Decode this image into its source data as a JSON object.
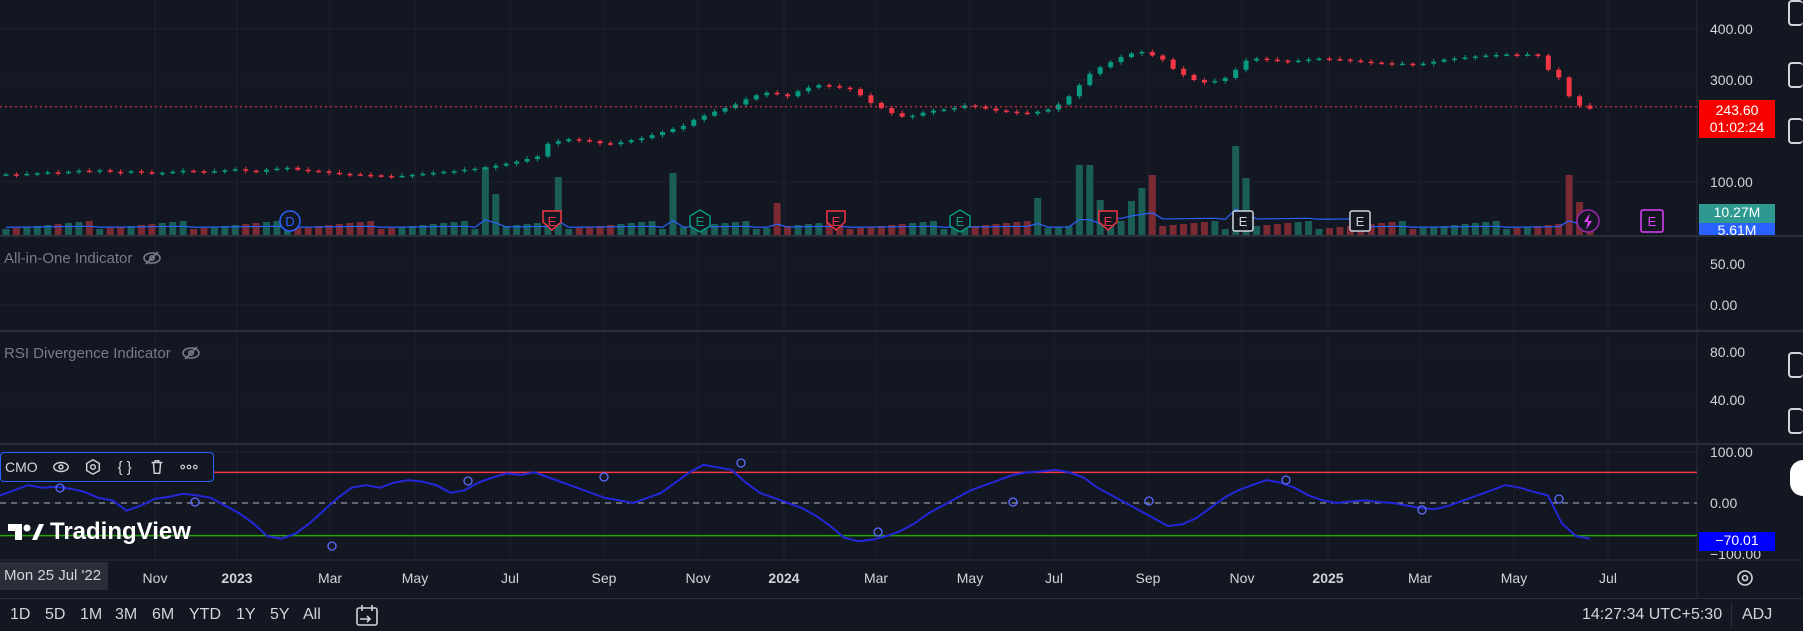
{
  "chart_data": {
    "type": "candlestick",
    "price_axis": {
      "min": 100,
      "max": 400,
      "ticks": [
        "400.00",
        "300.00",
        "100.00"
      ]
    },
    "aio_axis_ticks": [
      "50.00",
      "0.00"
    ],
    "rsi_axis_ticks": [
      "80.00",
      "40.00"
    ],
    "cmo_axis_ticks": [
      "100.00",
      "0.00",
      "−100.00"
    ],
    "time_axis": [
      "Nov",
      "2023",
      "Mar",
      "May",
      "Jul",
      "Sep",
      "Nov",
      "2024",
      "Mar",
      "May",
      "Jul",
      "Sep",
      "Nov",
      "2025",
      "Mar",
      "May",
      "Jul"
    ],
    "time_axis_bold": [
      "2023",
      "2024",
      "2025"
    ],
    "close_series": [
      115,
      114,
      116,
      117,
      119,
      118,
      120,
      122,
      121,
      123,
      120,
      118,
      121,
      119,
      117,
      118,
      120,
      122,
      121,
      120,
      121,
      123,
      125,
      122,
      120,
      124,
      126,
      128,
      124,
      122,
      121,
      118,
      116,
      115,
      114,
      113,
      112,
      111,
      112,
      114,
      116,
      118,
      120,
      121,
      124,
      126,
      128,
      132,
      136,
      140,
      145,
      150,
      175,
      180,
      184,
      182,
      180,
      176,
      174,
      178,
      182,
      186,
      192,
      198,
      204,
      210,
      222,
      230,
      238,
      245,
      252,
      262,
      270,
      275,
      272,
      268,
      278,
      285,
      290,
      288,
      285,
      282,
      270,
      255,
      245,
      235,
      228,
      230,
      236,
      240,
      242,
      245,
      250,
      248,
      244,
      240,
      238,
      236,
      234,
      238,
      242,
      252,
      268,
      290,
      312,
      325,
      335,
      345,
      352,
      355,
      348,
      340,
      322,
      310,
      300,
      295,
      298,
      304,
      320,
      338,
      342,
      340,
      338,
      336,
      338,
      340,
      342,
      341,
      340,
      338,
      336,
      334,
      333,
      332,
      332,
      330,
      332,
      336,
      340,
      342,
      344,
      346,
      348,
      349,
      350,
      349,
      350,
      348,
      320,
      305,
      268,
      250,
      243.6
    ],
    "candle_colors": {
      "up": "#089981",
      "down": "#f23645"
    },
    "last_price": "243.60",
    "countdown": "01:02:24",
    "volume_label": "10.27M",
    "volume_ma_label": "5.61M",
    "cmo_value": "−70.01",
    "cmo_series": [
      15,
      25,
      35,
      30,
      32,
      28,
      22,
      10,
      5,
      -15,
      -5,
      8,
      12,
      18,
      15,
      10,
      -5,
      -20,
      -40,
      -65,
      -70,
      -60,
      -40,
      -15,
      10,
      30,
      35,
      30,
      40,
      45,
      42,
      35,
      20,
      25,
      40,
      50,
      58,
      55,
      60,
      50,
      40,
      30,
      20,
      10,
      5,
      0,
      10,
      20,
      40,
      60,
      75,
      70,
      65,
      40,
      20,
      10,
      0,
      -10,
      -25,
      -45,
      -68,
      -75,
      -72,
      -65,
      -55,
      -40,
      -20,
      -5,
      10,
      25,
      35,
      45,
      55,
      60,
      62,
      65,
      60,
      50,
      30,
      15,
      0,
      -15,
      -30,
      -45,
      -42,
      -30,
      -10,
      10,
      25,
      35,
      45,
      40,
      30,
      15,
      5,
      0,
      3,
      5,
      2,
      0,
      -5,
      -10,
      -12,
      -5,
      5,
      15,
      25,
      35,
      30,
      22,
      15,
      -40,
      -65,
      -70
    ],
    "event_markers": [
      "D",
      "E",
      "E",
      "E",
      "E",
      "E",
      "E",
      "E",
      "E",
      "E",
      "E"
    ],
    "colors": {
      "cmo_line": "#2427d8",
      "overbought": "#f23645",
      "oversold": "#26a60a",
      "last_price": "#f70000",
      "volume_tag": "#2d9990",
      "ma_tag": "#2962ff",
      "cmo_tag": "#0000ff"
    }
  },
  "indicators": {
    "aio_label": "All-in-One Indicator",
    "rsi_label": "RSI Divergence Indicator",
    "cmo_label": "CMO"
  },
  "cursor_date": "Mon 25 Jul '22",
  "logo": "TradingView",
  "timeframes": [
    "1D",
    "5D",
    "1M",
    "3M",
    "6M",
    "YTD",
    "1Y",
    "5Y",
    "All"
  ],
  "clock": "14:27:34 UTC+5:30",
  "adj": "ADJ"
}
